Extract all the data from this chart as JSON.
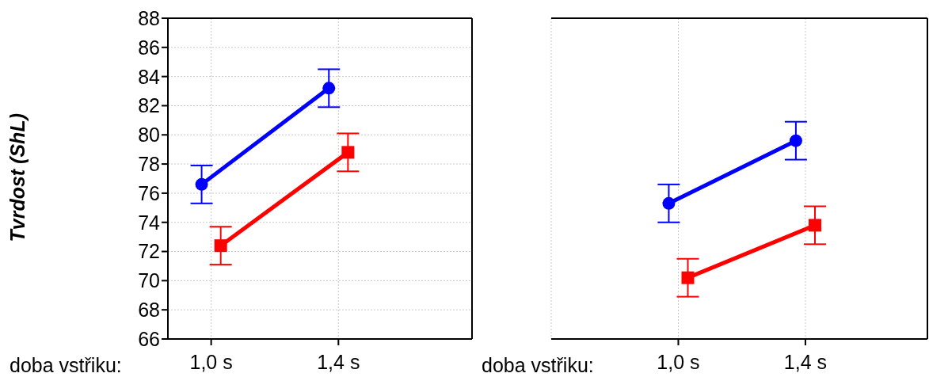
{
  "chart_data": [
    {
      "type": "line",
      "ylabel": "Tvrdost (ShL)",
      "xlabel": "doba vstřiku:",
      "categories": [
        "1,0 s",
        "1,4 s"
      ],
      "ylim": [
        66,
        88
      ],
      "yticks": [
        66,
        68,
        70,
        72,
        74,
        76,
        78,
        80,
        82,
        84,
        86,
        88
      ],
      "grid": true,
      "legend": false,
      "series": [
        {
          "color": "#0000ff",
          "marker": "circle",
          "values": [
            76.6,
            83.2
          ],
          "errors": [
            1.3,
            1.3
          ]
        },
        {
          "color": "#ff0000",
          "marker": "square",
          "values": [
            72.4,
            78.8
          ],
          "errors": [
            1.3,
            1.3
          ]
        }
      ]
    },
    {
      "type": "line",
      "xlabel": "doba vstřiku:",
      "categories": [
        "1,0 s",
        "1,4 s"
      ],
      "ylim": [
        66,
        88
      ],
      "yticks": [
        66,
        68,
        70,
        72,
        74,
        76,
        78,
        80,
        82,
        84,
        86,
        88
      ],
      "grid": true,
      "legend": false,
      "tick_labels": "x",
      "series": [
        {
          "color": "#0000ff",
          "marker": "circle",
          "values": [
            75.3,
            79.6
          ],
          "errors": [
            1.3,
            1.3
          ]
        },
        {
          "color": "#ff0000",
          "marker": "square",
          "values": [
            70.2,
            73.8
          ],
          "errors": [
            1.3,
            1.3
          ]
        }
      ]
    }
  ]
}
